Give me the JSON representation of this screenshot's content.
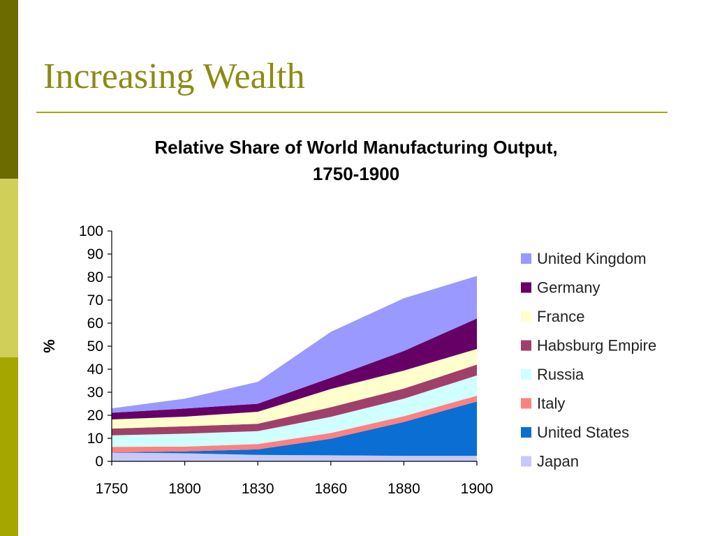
{
  "slide": {
    "title": "Increasing Wealth",
    "title_color": "#8B8B14",
    "rule_color": "#A6A600",
    "side_colors": [
      "#6B6B00",
      "#CFCF5A",
      "#A6A600"
    ]
  },
  "chart_data": {
    "type": "area",
    "stacked": true,
    "title": "Relative Share of World Manufacturing Output,",
    "subtitle": "1750-1900",
    "xlabel": "",
    "ylabel": "%",
    "categories": [
      "1750",
      "1800",
      "1830",
      "1860",
      "1880",
      "1900"
    ],
    "ylim": [
      0,
      100
    ],
    "yticks": [
      0,
      10,
      20,
      30,
      40,
      50,
      60,
      70,
      80,
      90,
      100
    ],
    "grid": false,
    "legend_position": "right",
    "series": [
      {
        "name": "Japan",
        "color": "#C8C8F8",
        "values": [
          3.8,
          3.5,
          2.8,
          2.6,
          2.4,
          2.4
        ]
      },
      {
        "name": "United States",
        "color": "#0A6ED2",
        "values": [
          0.1,
          0.8,
          2.4,
          7.2,
          14.7,
          23.6
        ]
      },
      {
        "name": "Italy",
        "color": "#FF8080",
        "values": [
          2.4,
          2.1,
          2.3,
          2.5,
          2.5,
          2.5
        ]
      },
      {
        "name": "Russia",
        "color": "#CFFFFF",
        "values": [
          5.0,
          5.6,
          5.6,
          7.0,
          7.6,
          8.8
        ]
      },
      {
        "name": "Habsburg Empire",
        "color": "#A0406A",
        "values": [
          2.9,
          3.2,
          3.2,
          4.2,
          4.4,
          4.7
        ]
      },
      {
        "name": "France",
        "color": "#FFFFCC",
        "values": [
          4.0,
          4.2,
          5.2,
          7.9,
          7.8,
          6.8
        ]
      },
      {
        "name": "Germany",
        "color": "#660066",
        "values": [
          2.9,
          3.5,
          3.5,
          4.9,
          8.5,
          13.2
        ]
      },
      {
        "name": "United Kingdom",
        "color": "#9999FF",
        "values": [
          1.9,
          4.3,
          9.5,
          19.9,
          22.9,
          18.5
        ]
      }
    ]
  }
}
